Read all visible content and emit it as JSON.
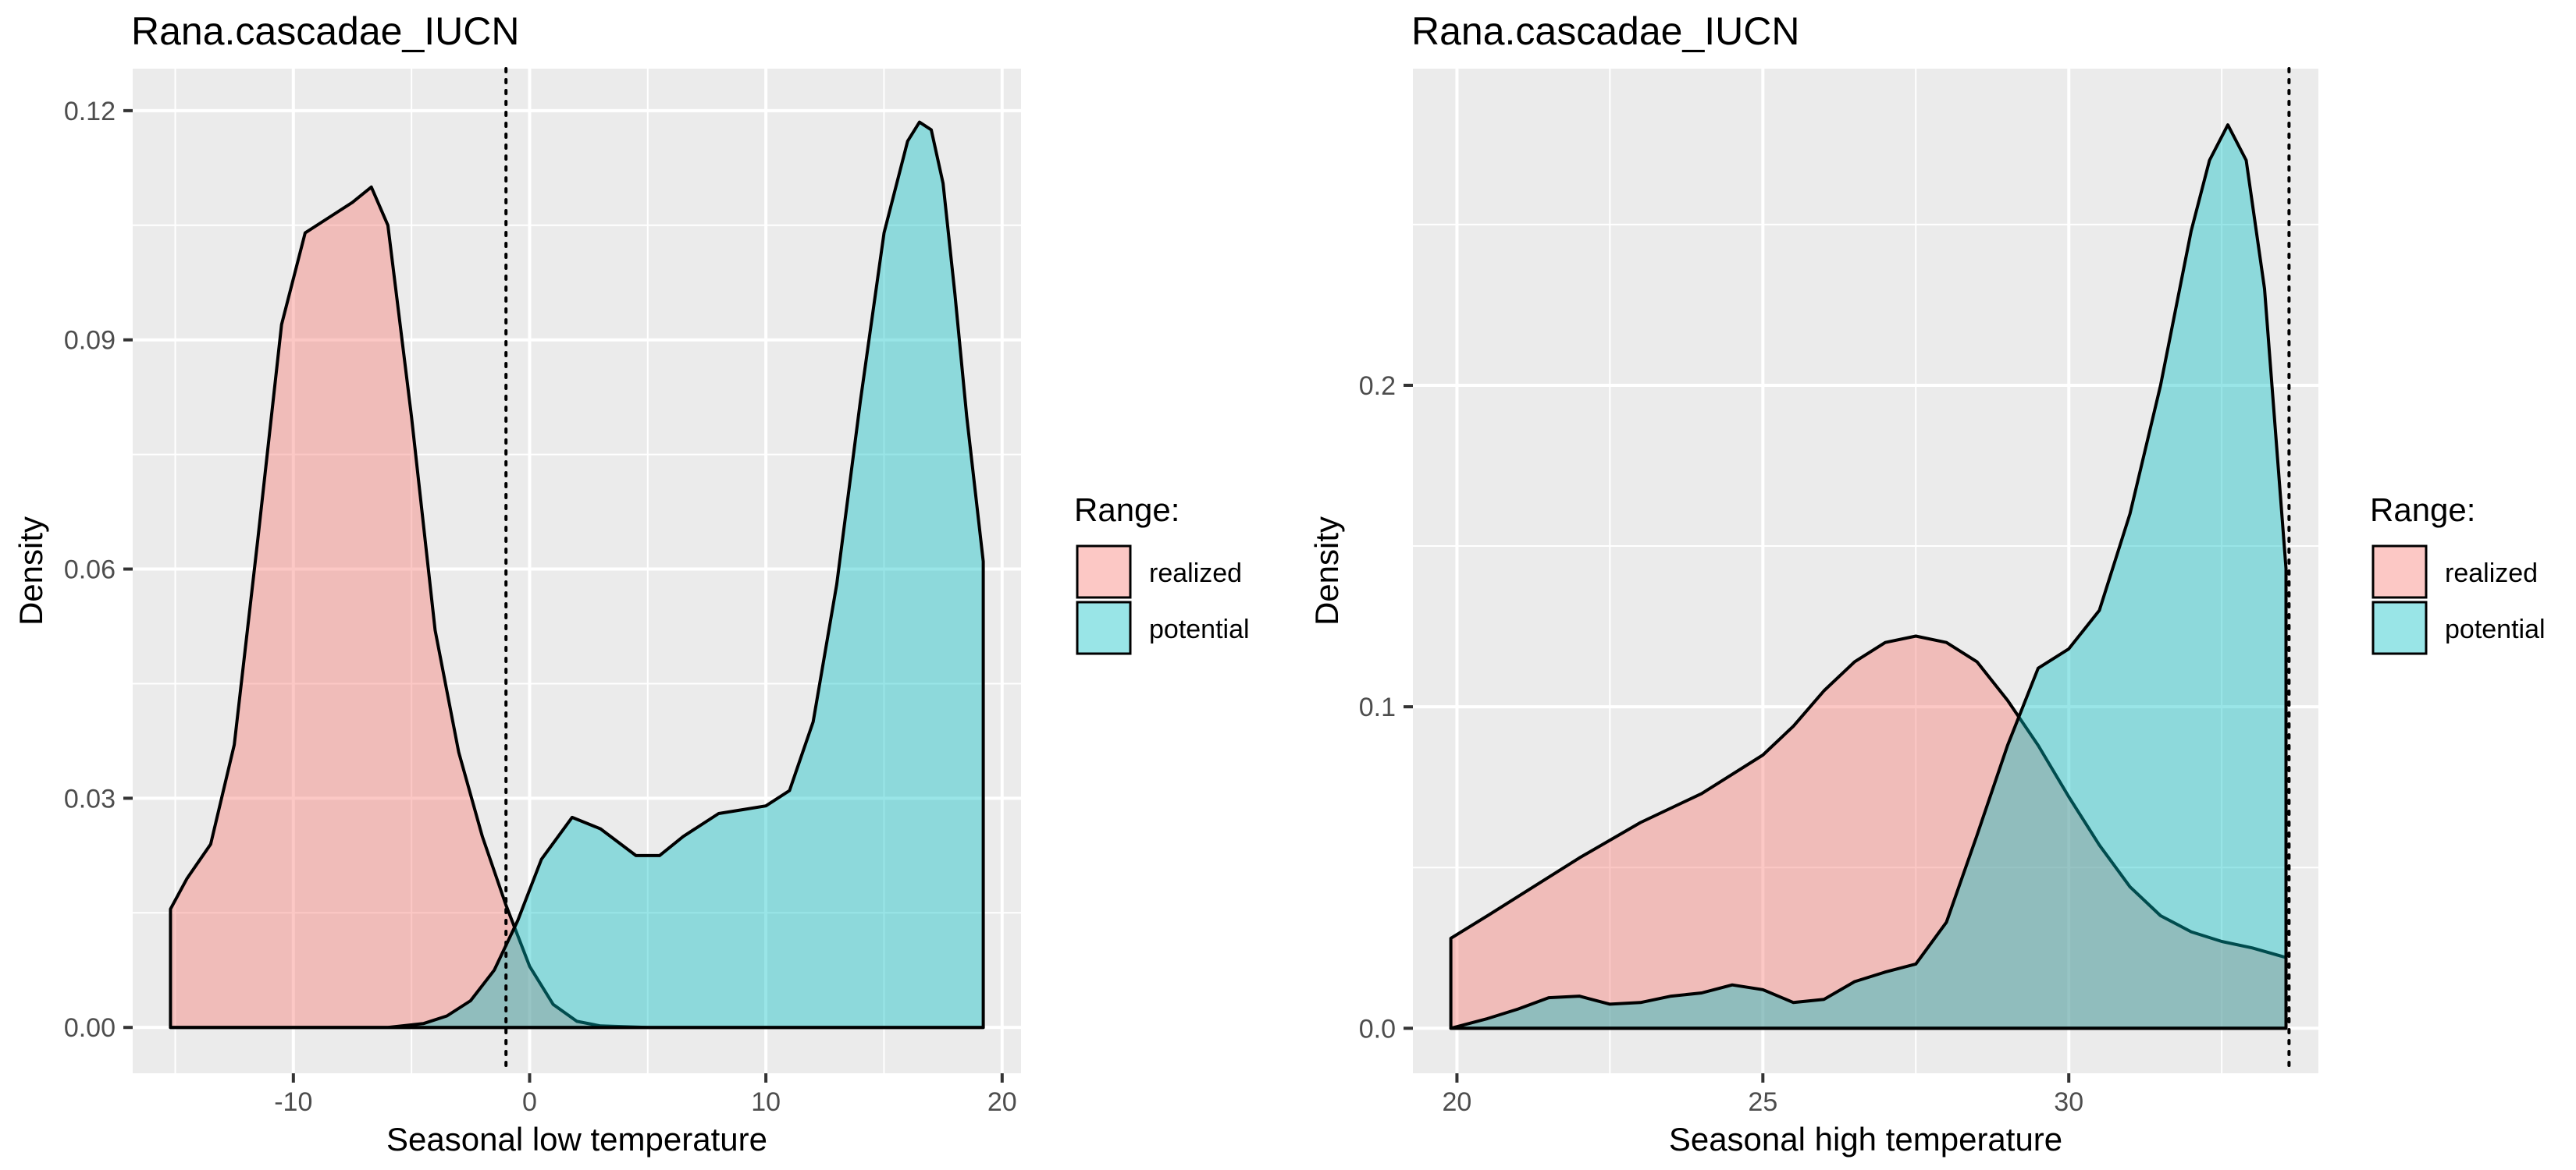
{
  "chart_data": [
    {
      "type": "area",
      "title": "Rana.cascadae_IUCN",
      "xlabel": "Seasonal low temperature",
      "ylabel": "Density",
      "xlim": [
        -16.8,
        20.8
      ],
      "ylim": [
        -0.006,
        0.1255
      ],
      "xticks": [
        -10,
        0,
        10,
        20
      ],
      "xtick_labels": [
        "-10",
        "0",
        "10",
        "20"
      ],
      "yticks": [
        0,
        0.03,
        0.06,
        0.09,
        0.12
      ],
      "ytick_labels": [
        "0.00",
        "0.03",
        "0.06",
        "0.09",
        "0.12"
      ],
      "grid": true,
      "legend": {
        "title": "Range:",
        "position": "right"
      },
      "reference_line": {
        "x": -1,
        "style": "dotted"
      },
      "series": [
        {
          "name": "realized",
          "color": "#F8766D",
          "x": [
            -15.2,
            -14.5,
            -13.5,
            -12.5,
            -11.5,
            -10.5,
            -9.5,
            -8.5,
            -7.5,
            -6.7,
            -6.0,
            -5.0,
            -4.0,
            -3.0,
            -2.0,
            -1.0,
            0.0,
            1.0,
            2.0,
            3.0,
            5.0,
            19.2
          ],
          "y": [
            0.0155,
            0.0195,
            0.024,
            0.037,
            0.064,
            0.092,
            0.104,
            0.106,
            0.108,
            0.11,
            0.105,
            0.08,
            0.052,
            0.036,
            0.025,
            0.016,
            0.008,
            0.003,
            0.0008,
            0.0002,
            0,
            0
          ]
        },
        {
          "name": "potential",
          "color": "#00BFC4",
          "x": [
            -15.2,
            -6.0,
            -4.5,
            -3.5,
            -2.5,
            -1.5,
            -0.5,
            0.5,
            1.8,
            3.0,
            4.5,
            5.5,
            6.5,
            8.0,
            9.0,
            10.0,
            11.0,
            12.0,
            13.0,
            14.0,
            15.0,
            16.0,
            16.5,
            17.0,
            17.5,
            18.0,
            18.5,
            19.2
          ],
          "y": [
            0,
            0,
            0.0005,
            0.0015,
            0.0035,
            0.0075,
            0.014,
            0.022,
            0.0275,
            0.026,
            0.0225,
            0.0225,
            0.025,
            0.028,
            0.0285,
            0.029,
            0.031,
            0.04,
            0.058,
            0.082,
            0.104,
            0.116,
            0.1185,
            0.1175,
            0.1105,
            0.096,
            0.08,
            0.061
          ]
        }
      ]
    },
    {
      "type": "area",
      "title": "Rana.cascadae_IUCN",
      "xlabel": "Seasonal high temperature",
      "ylabel": "Density",
      "xlim": [
        19.28,
        34.08
      ],
      "ylim": [
        -0.014,
        0.2985
      ],
      "xticks": [
        20,
        25,
        30
      ],
      "xtick_labels": [
        "20",
        "25",
        "30"
      ],
      "yticks": [
        0,
        0.1,
        0.2
      ],
      "ytick_labels": [
        "0.0",
        "0.1",
        "0.2"
      ],
      "grid": true,
      "legend": {
        "title": "Range:",
        "position": "right"
      },
      "reference_line": {
        "x": 33.6,
        "style": "dotted"
      },
      "series": [
        {
          "name": "realized",
          "color": "#F8766D",
          "x": [
            19.9,
            20.5,
            21.0,
            22.0,
            23.0,
            24.0,
            25.0,
            25.5,
            26.0,
            26.5,
            27.0,
            27.5,
            28.0,
            28.5,
            29.0,
            29.5,
            30.0,
            30.5,
            31.0,
            31.5,
            32.0,
            32.5,
            33.0,
            33.55
          ],
          "y": [
            0.028,
            0.035,
            0.041,
            0.053,
            0.064,
            0.073,
            0.085,
            0.094,
            0.105,
            0.114,
            0.12,
            0.122,
            0.12,
            0.114,
            0.102,
            0.088,
            0.072,
            0.057,
            0.044,
            0.035,
            0.03,
            0.027,
            0.025,
            0.022
          ]
        },
        {
          "name": "potential",
          "color": "#00BFC4",
          "x": [
            19.9,
            20.5,
            21.0,
            21.5,
            22.0,
            22.5,
            23.0,
            23.5,
            24.0,
            24.5,
            25.0,
            25.5,
            26.0,
            26.5,
            27.0,
            27.5,
            28.0,
            28.5,
            29.0,
            29.5,
            30.0,
            30.5,
            31.0,
            31.5,
            32.0,
            32.3,
            32.6,
            32.9,
            33.2,
            33.55
          ],
          "y": [
            0,
            0.003,
            0.006,
            0.0095,
            0.01,
            0.0075,
            0.008,
            0.01,
            0.011,
            0.0135,
            0.012,
            0.008,
            0.009,
            0.0145,
            0.0175,
            0.02,
            0.033,
            0.06,
            0.088,
            0.112,
            0.118,
            0.13,
            0.16,
            0.2,
            0.248,
            0.27,
            0.281,
            0.27,
            0.23,
            0.143
          ]
        }
      ]
    }
  ]
}
